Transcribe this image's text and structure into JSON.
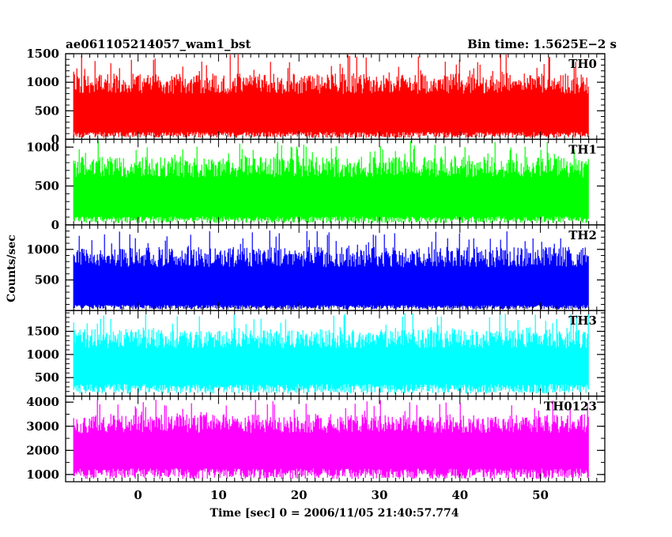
{
  "chart_data": {
    "type": "line",
    "title_left": "ae061105214057_wam1_bst",
    "title_right": "Bin time: 1.5625E−2 s",
    "xlabel": "Time [sec] 0 = 2006/11/05 21:40:57.774",
    "ylabel": "Counts/sec",
    "xlim": [
      -9,
      58
    ],
    "x_data_range": [
      -8,
      56
    ],
    "bin_time": 0.015625,
    "x_ticks": [
      0,
      10,
      20,
      30,
      40,
      50
    ],
    "x_tick_labels": [
      "0",
      "10",
      "20",
      "30",
      "40",
      "50"
    ],
    "panels": [
      {
        "name": "TH0",
        "color": "#ff0000",
        "ylim": [
          0,
          1500
        ],
        "y_ticks": [
          0,
          500,
          1000,
          1500
        ],
        "y_tick_labels": [
          "0",
          "500",
          "1000",
          "1500"
        ],
        "typical_min": 130,
        "typical_max": 1150,
        "peak_max": 1500
      },
      {
        "name": "TH1",
        "color": "#00ff00",
        "ylim": [
          0,
          1100
        ],
        "y_ticks": [
          0,
          500,
          1000
        ],
        "y_tick_labels": [
          "0",
          "500",
          "1000"
        ],
        "typical_min": 110,
        "typical_max": 880,
        "peak_max": 1080
      },
      {
        "name": "TH2",
        "color": "#0000ff",
        "ylim": [
          0,
          1400
        ],
        "y_ticks": [
          500,
          1000
        ],
        "y_tick_labels": [
          "500",
          "1000"
        ],
        "typical_min": 90,
        "typical_max": 1040,
        "peak_max": 1320
      },
      {
        "name": "TH3",
        "color": "#00ffff",
        "ylim": [
          100,
          1950
        ],
        "y_ticks": [
          500,
          1000,
          1500
        ],
        "y_tick_labels": [
          "500",
          "1000",
          "1500"
        ],
        "typical_min": 360,
        "typical_max": 1550,
        "peak_max": 1900
      },
      {
        "name": "TH0123",
        "color": "#ff00ff",
        "ylim": [
          700,
          4250
        ],
        "y_ticks": [
          1000,
          2000,
          3000,
          4000
        ],
        "y_tick_labels": [
          "1000",
          "2000",
          "3000",
          "4000"
        ],
        "typical_min": 1250,
        "typical_max": 3500,
        "peak_max": 4100
      }
    ]
  }
}
